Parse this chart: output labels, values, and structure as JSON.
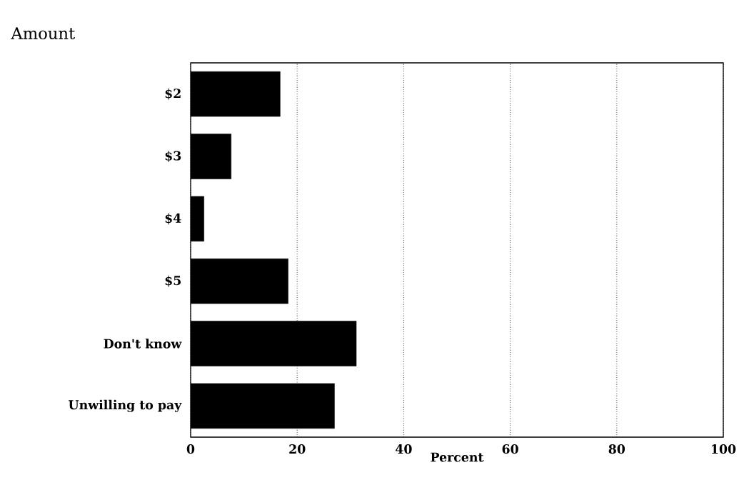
{
  "chart_data": {
    "type": "bar",
    "orientation": "horizontal",
    "ylabel": "Amount",
    "xlabel": "Percent",
    "categories": [
      "$2",
      "$3",
      "$4",
      "$5",
      "Don't know",
      "Unwilling to pay"
    ],
    "values": [
      16.8,
      7.6,
      2.5,
      18.3,
      31.1,
      27.0
    ],
    "color": "#000000",
    "xlim": [
      0,
      100
    ],
    "xticks": [
      0,
      20,
      40,
      60,
      80,
      100
    ],
    "grid": "x"
  }
}
